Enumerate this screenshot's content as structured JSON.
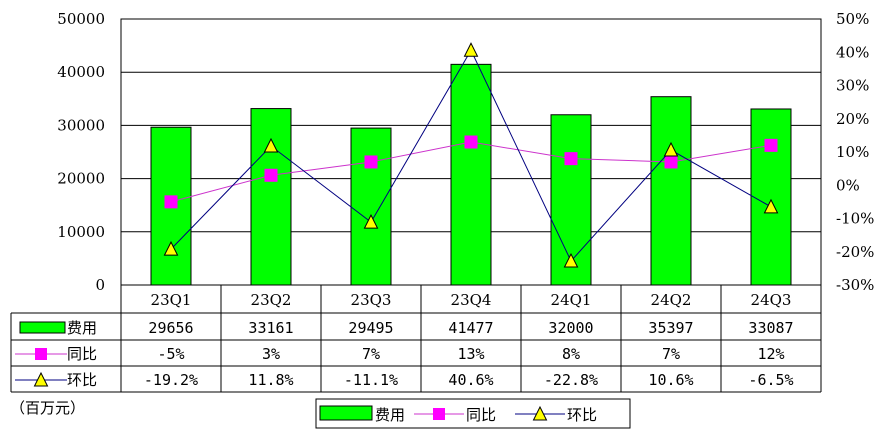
{
  "chart_data": {
    "type": "bar+line",
    "categories": [
      "23Q1",
      "23Q2",
      "23Q3",
      "23Q4",
      "24Q1",
      "24Q2",
      "24Q3"
    ],
    "bar_series": {
      "name": "费用",
      "values": [
        29656,
        33161,
        29495,
        41477,
        32000,
        35397,
        33087
      ],
      "labels": [
        "29656",
        "33161",
        "29495",
        "41477",
        "32000",
        "35397",
        "33087"
      ],
      "color": "#00ff00"
    },
    "line_series": [
      {
        "name": "同比",
        "values": [
          -5,
          3,
          7,
          13,
          8,
          7,
          12
        ],
        "labels": [
          "-5%",
          "3%",
          "7%",
          "13%",
          "8%",
          "7%",
          "12%"
        ],
        "color": "#cc33cc",
        "marker": "square",
        "marker_color": "#ff00ff"
      },
      {
        "name": "环比",
        "values": [
          -19.2,
          11.8,
          -11.1,
          40.6,
          -22.8,
          10.6,
          -6.5
        ],
        "labels": [
          "-19.2%",
          "11.8%",
          "-11.1%",
          "40.6%",
          "-22.8%",
          "10.6%",
          "-6.5%"
        ],
        "color": "#000080",
        "marker": "triangle",
        "marker_color": "#ffff00"
      }
    ],
    "y_left": {
      "range": [
        0,
        50000
      ],
      "ticks": [
        "0",
        "10000",
        "20000",
        "30000",
        "40000",
        "50000"
      ]
    },
    "y_right": {
      "range": [
        -30,
        50
      ],
      "ticks": [
        "-30%",
        "-20%",
        "-10%",
        "0%",
        "10%",
        "20%",
        "30%",
        "40%",
        "50%"
      ]
    },
    "unit_label": "（百万元）",
    "grid": true,
    "legend_position": "bottom",
    "data_table": true
  }
}
